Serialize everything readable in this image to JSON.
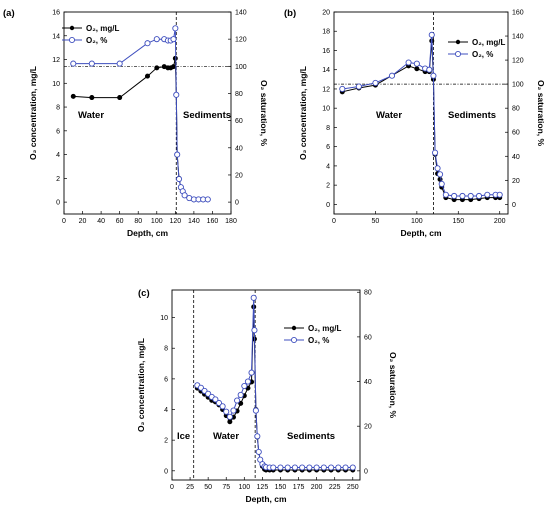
{
  "panels": [
    {
      "label": "(a)",
      "xlabel": "Depth, cm",
      "ylabel_left": "O₂ concentration, mg/L",
      "ylabel_right": "O₂ saturation, %",
      "legend": [
        "O₂, mg/L",
        "O₂, %"
      ],
      "zones": [
        "Water",
        "Sediments"
      ],
      "xticks": [
        "0",
        "20",
        "40",
        "60",
        "80",
        "100",
        "120",
        "140",
        "160",
        "180"
      ],
      "yticks_left": [
        "0",
        "2",
        "4",
        "6",
        "8",
        "10",
        "12",
        "14",
        "16"
      ],
      "yticks_right": [
        "0",
        "20",
        "40",
        "60",
        "80",
        "100",
        "120",
        "140"
      ]
    },
    {
      "label": "(b)",
      "xlabel": "Depth, cm",
      "ylabel_left": "O₂ concentration, mg/L",
      "ylabel_right": "O₂ saturation, %",
      "legend": [
        "O₂, mg/L",
        "O₂, %"
      ],
      "zones": [
        "Water",
        "Sediments"
      ],
      "xticks": [
        "0",
        "50",
        "100",
        "150",
        "200"
      ],
      "yticks_left": [
        "0",
        "2",
        "4",
        "6",
        "8",
        "10",
        "12",
        "14",
        "16",
        "18",
        "20"
      ],
      "yticks_right": [
        "0",
        "20",
        "40",
        "60",
        "80",
        "100",
        "120",
        "140",
        "160"
      ]
    },
    {
      "label": "(c)",
      "xlabel": "Depth, cm",
      "ylabel_left": "O₂ concentration, mg/L",
      "ylabel_right": "O₂ saturation, %",
      "legend": [
        "O₂, mg/L",
        "O₂, %"
      ],
      "zones": [
        "Ice",
        "Water",
        "Sediments"
      ],
      "xticks": [
        "0",
        "25",
        "50",
        "75",
        "100",
        "125",
        "150",
        "175",
        "200",
        "225",
        "250"
      ],
      "yticks_left": [
        "0",
        "2",
        "4",
        "6",
        "8",
        "10"
      ],
      "yticks_right": [
        "0",
        "20",
        "40",
        "60",
        "80"
      ]
    }
  ],
  "chart_data": [
    {
      "type": "line",
      "title": "(a)",
      "xlabel": "Depth, cm",
      "ylabel": "O₂ concentration, mg/L",
      "y2label": "O₂ saturation, %",
      "xlim": [
        0,
        180
      ],
      "ylim": [
        -1,
        16
      ],
      "y2lim": [
        -8.75,
        140
      ],
      "saturation_reference": 100,
      "interface_depth": 121,
      "series": [
        {
          "name": "O₂, mg/L",
          "axis": "left",
          "color": "#000000",
          "marker": "filled-circle",
          "x": [
            10,
            30,
            60,
            90,
            100,
            108,
            112,
            115,
            118,
            120,
            121,
            122,
            124,
            126,
            128,
            130,
            135,
            140,
            145,
            150,
            155
          ],
          "y": [
            8.9,
            8.8,
            8.8,
            10.6,
            11.3,
            11.4,
            11.3,
            11.3,
            11.4,
            12.1,
            9,
            4,
            2,
            1.2,
            0.9,
            0.6,
            0.3,
            0.2,
            0.2,
            0.2,
            0.2
          ]
        },
        {
          "name": "O₂, %",
          "axis": "right",
          "color": "#3f4fbf",
          "marker": "open-circle",
          "x": [
            10,
            30,
            60,
            90,
            100,
            108,
            112,
            115,
            118,
            120,
            121,
            122,
            124,
            126,
            128,
            130,
            135,
            140,
            145,
            150,
            155
          ],
          "y": [
            102,
            102,
            102,
            117,
            120,
            120,
            119,
            119,
            120,
            128,
            79,
            35,
            17,
            11,
            8,
            5,
            3,
            2,
            2,
            2,
            2
          ]
        }
      ]
    },
    {
      "type": "line",
      "title": "(b)",
      "xlabel": "Depth, cm",
      "ylabel": "O₂ concentration, mg/L",
      "y2label": "O₂ saturation, %",
      "xlim": [
        0,
        210
      ],
      "ylim": [
        -1,
        20
      ],
      "y2lim": [
        -8,
        160
      ],
      "saturation_reference": 100,
      "interface_depth": 120,
      "series": [
        {
          "name": "O₂, mg/L",
          "axis": "left",
          "color": "#000000",
          "marker": "filled-circle",
          "x": [
            10,
            30,
            50,
            70,
            90,
            100,
            110,
            115,
            118,
            120,
            122,
            125,
            128,
            130,
            135,
            145,
            155,
            165,
            175,
            185,
            195,
            200
          ],
          "y": [
            11.7,
            12.1,
            12.4,
            13.4,
            14.4,
            14.1,
            13.8,
            13.8,
            17,
            13,
            5.2,
            3.2,
            2.6,
            1.8,
            0.7,
            0.5,
            0.5,
            0.5,
            0.6,
            0.7,
            0.7,
            0.7
          ]
        },
        {
          "name": "O₂, %",
          "axis": "right",
          "color": "#3f4fbf",
          "marker": "open-circle",
          "x": [
            10,
            30,
            50,
            70,
            90,
            100,
            110,
            115,
            118,
            120,
            122,
            125,
            128,
            130,
            135,
            145,
            155,
            165,
            175,
            185,
            195,
            200
          ],
          "y": [
            96,
            98,
            101,
            107,
            118,
            117,
            113,
            112,
            141,
            107,
            43,
            30,
            25,
            17,
            8,
            7,
            7,
            7,
            7,
            8,
            8,
            8
          ]
        }
      ]
    },
    {
      "type": "line",
      "title": "(c)",
      "xlabel": "Depth, cm",
      "ylabel": "O₂ concentration, mg/L",
      "y2label": "O₂ saturation, %",
      "xlim": [
        0,
        260
      ],
      "ylim": [
        -0.6,
        11.8
      ],
      "y2lim": [
        -4.1,
        81
      ],
      "ice_boundary_depth": 30,
      "interface_depth": 115,
      "series": [
        {
          "name": "O₂, mg/L",
          "axis": "left",
          "color": "#000000",
          "marker": "filled-circle",
          "x": [
            35,
            40,
            45,
            50,
            55,
            60,
            65,
            70,
            75,
            80,
            85,
            90,
            95,
            100,
            105,
            110,
            113,
            114,
            116,
            118,
            120,
            122,
            125,
            128,
            130,
            135,
            140,
            150,
            160,
            170,
            180,
            190,
            200,
            210,
            220,
            230,
            240,
            250
          ],
          "y": [
            5.4,
            5.2,
            5.0,
            4.8,
            4.6,
            4.5,
            4.3,
            4.0,
            3.6,
            3.2,
            3.5,
            3.9,
            4.4,
            4.9,
            5.4,
            5.8,
            10.7,
            8.6,
            4.0,
            2.2,
            1.2,
            0.7,
            0.3,
            0.1,
            0.05,
            0.05,
            0.05,
            0.05,
            0.05,
            0.05,
            0.05,
            0.05,
            0.05,
            0.05,
            0.05,
            0.05,
            0.05,
            0.05
          ]
        },
        {
          "name": "O₂, %",
          "axis": "right",
          "color": "#3f4fbf",
          "marker": "open-circle",
          "x": [
            35,
            40,
            45,
            50,
            55,
            60,
            65,
            70,
            75,
            80,
            85,
            90,
            95,
            100,
            105,
            110,
            113,
            114,
            116,
            118,
            120,
            122,
            125,
            128,
            130,
            135,
            140,
            150,
            160,
            170,
            180,
            190,
            200,
            210,
            220,
            230,
            240,
            250
          ],
          "y": [
            38.3,
            37.2,
            35.8,
            34.5,
            33.1,
            32.0,
            30.4,
            28.9,
            26.5,
            24.2,
            27.0,
            31.5,
            34.0,
            38.0,
            40.0,
            44.0,
            77.5,
            63.0,
            27.0,
            15.5,
            8.5,
            5.0,
            3.0,
            2.0,
            1.6,
            1.5,
            1.5,
            1.5,
            1.5,
            1.5,
            1.5,
            1.5,
            1.5,
            1.5,
            1.5,
            1.5,
            1.5,
            1.5
          ]
        }
      ]
    }
  ]
}
